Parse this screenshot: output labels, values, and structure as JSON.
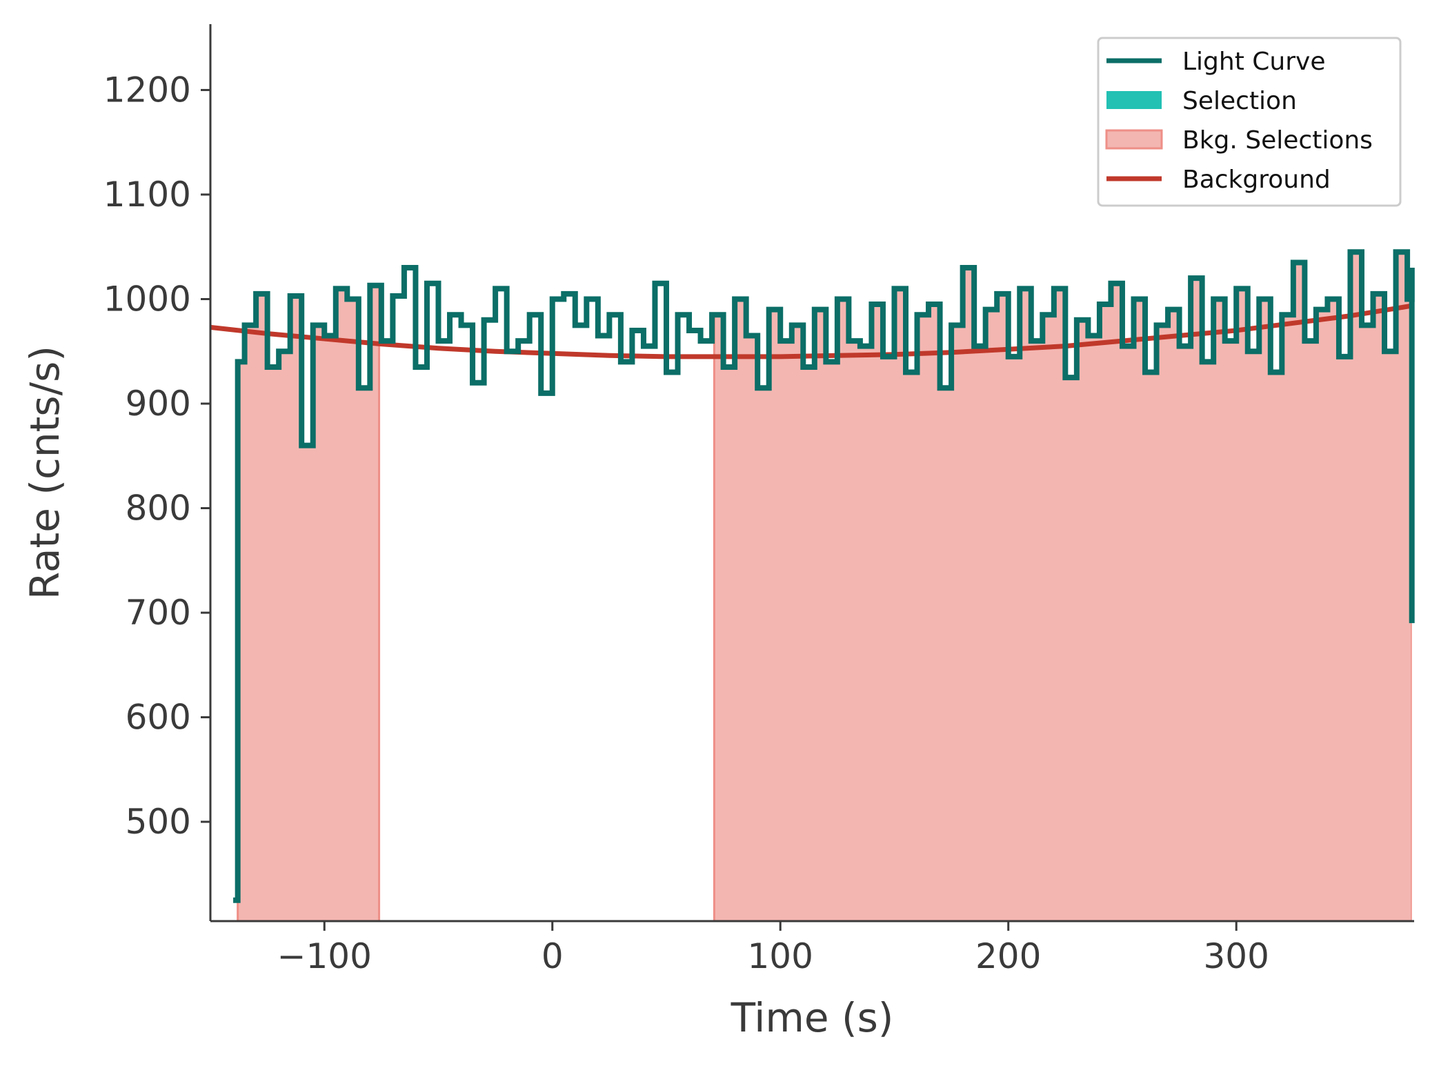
{
  "chart_data": {
    "type": "line",
    "xlabel": "Time (s)",
    "ylabel": "Rate (cnts/s)",
    "xlim": [
      -150,
      378
    ],
    "ylim": [
      405,
      1263
    ],
    "xticks": [
      -100,
      0,
      100,
      200,
      300
    ],
    "xtick_labels": [
      "−100",
      "0",
      "100",
      "200",
      "300"
    ],
    "yticks": [
      500,
      600,
      700,
      800,
      900,
      1000,
      1100,
      1200
    ],
    "ytick_labels": [
      "500",
      "600",
      "700",
      "800",
      "900",
      "1000",
      "1100",
      "1200"
    ],
    "grid": false,
    "legend": {
      "placement": "top-right",
      "entries": [
        "Light Curve",
        "Selection",
        "Bkg. Selections",
        "Background"
      ]
    },
    "colors": {
      "light_curve": "#0b6e67",
      "selection": "#22c1b4",
      "bkg_fill": "#f4b6b1",
      "bkg_edge": "#ee8f87",
      "background": "#c0392b",
      "axis": "#3a3a3a"
    },
    "background_selections": [
      [
        -138,
        -76
      ],
      [
        71,
        377
      ]
    ],
    "series": [
      {
        "name": "Light Curve",
        "kind": "step",
        "x": [
          -140,
          -138,
          -135,
          -130,
          -125,
          -120,
          -115,
          -110,
          -105,
          -100,
          -95,
          -90,
          -85,
          -80,
          -75,
          -70,
          -65,
          -60,
          -55,
          -50,
          -45,
          -40,
          -35,
          -30,
          -25,
          -20,
          -15,
          -10,
          -5,
          0,
          5,
          10,
          15,
          20,
          25,
          30,
          35,
          40,
          45,
          50,
          55,
          60,
          65,
          70,
          75,
          80,
          85,
          90,
          95,
          100,
          105,
          110,
          115,
          120,
          125,
          130,
          135,
          140,
          145,
          150,
          155,
          160,
          165,
          170,
          175,
          180,
          185,
          190,
          195,
          200,
          205,
          210,
          215,
          220,
          225,
          230,
          235,
          240,
          245,
          250,
          255,
          260,
          265,
          270,
          275,
          280,
          285,
          290,
          295,
          300,
          305,
          310,
          315,
          320,
          325,
          330,
          335,
          340,
          345,
          350,
          355,
          360,
          365,
          370,
          375,
          377
        ],
        "y": [
          425,
          940,
          975,
          1005,
          935,
          950,
          1003,
          860,
          975,
          965,
          1010,
          1000,
          915,
          1013,
          960,
          1003,
          1030,
          935,
          1015,
          960,
          985,
          975,
          920,
          980,
          1010,
          950,
          960,
          985,
          910,
          1000,
          1005,
          975,
          1000,
          965,
          985,
          940,
          970,
          955,
          1015,
          930,
          985,
          970,
          960,
          985,
          935,
          1000,
          965,
          915,
          990,
          960,
          975,
          935,
          990,
          940,
          1000,
          960,
          955,
          995,
          945,
          1010,
          930,
          985,
          995,
          915,
          975,
          1030,
          955,
          990,
          1005,
          945,
          1010,
          960,
          985,
          1010,
          925,
          980,
          965,
          995,
          1015,
          955,
          1000,
          930,
          975,
          990,
          955,
          1020,
          940,
          1000,
          960,
          1010,
          950,
          1000,
          930,
          985,
          1035,
          960,
          990,
          1000,
          945,
          1045,
          975,
          1005,
          950,
          1045,
          1000,
          1030
        ]
      },
      {
        "name": "Background",
        "kind": "line",
        "x": [
          -150,
          -125,
          -100,
          -75,
          -50,
          -25,
          0,
          25,
          50,
          75,
          100,
          125,
          150,
          175,
          200,
          225,
          250,
          275,
          300,
          325,
          350,
          378
        ],
        "y": [
          973,
          967,
          962,
          957,
          953,
          950,
          948,
          946,
          945,
          945,
          945,
          946,
          947,
          949,
          952,
          955,
          960,
          965,
          970,
          977,
          984,
          994
        ]
      }
    ]
  }
}
